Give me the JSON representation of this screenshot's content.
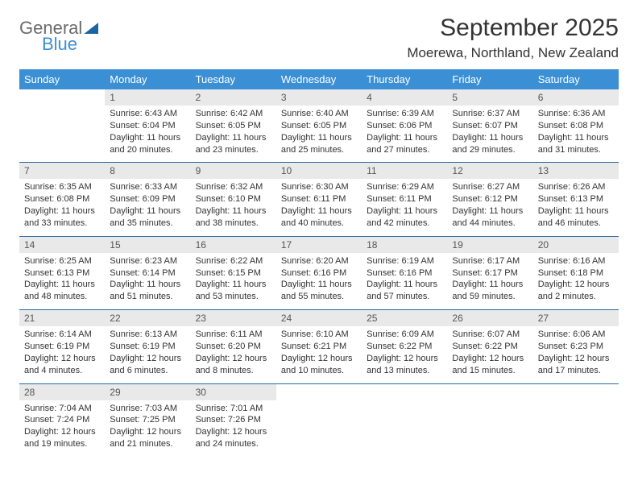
{
  "logo": {
    "line1": "General",
    "line2": "Blue"
  },
  "title": "September 2025",
  "location": "Moerewa, Northland, New Zealand",
  "colors": {
    "header_bg": "#3b8fd4",
    "header_text": "#ffffff",
    "daynum_bg": "#e9e9e9",
    "rule": "#2b6aa0",
    "body_text": "#333333",
    "logo_gray": "#6b6b6b",
    "logo_blue": "#3b8fd4"
  },
  "weekdays": [
    "Sunday",
    "Monday",
    "Tuesday",
    "Wednesday",
    "Thursday",
    "Friday",
    "Saturday"
  ],
  "weeks": [
    {
      "nums": [
        "",
        "1",
        "2",
        "3",
        "4",
        "5",
        "6"
      ],
      "cells": [
        "",
        "Sunrise: 6:43 AM\nSunset: 6:04 PM\nDaylight: 11 hours and 20 minutes.",
        "Sunrise: 6:42 AM\nSunset: 6:05 PM\nDaylight: 11 hours and 23 minutes.",
        "Sunrise: 6:40 AM\nSunset: 6:05 PM\nDaylight: 11 hours and 25 minutes.",
        "Sunrise: 6:39 AM\nSunset: 6:06 PM\nDaylight: 11 hours and 27 minutes.",
        "Sunrise: 6:37 AM\nSunset: 6:07 PM\nDaylight: 11 hours and 29 minutes.",
        "Sunrise: 6:36 AM\nSunset: 6:08 PM\nDaylight: 11 hours and 31 minutes."
      ]
    },
    {
      "nums": [
        "7",
        "8",
        "9",
        "10",
        "11",
        "12",
        "13"
      ],
      "cells": [
        "Sunrise: 6:35 AM\nSunset: 6:08 PM\nDaylight: 11 hours and 33 minutes.",
        "Sunrise: 6:33 AM\nSunset: 6:09 PM\nDaylight: 11 hours and 35 minutes.",
        "Sunrise: 6:32 AM\nSunset: 6:10 PM\nDaylight: 11 hours and 38 minutes.",
        "Sunrise: 6:30 AM\nSunset: 6:11 PM\nDaylight: 11 hours and 40 minutes.",
        "Sunrise: 6:29 AM\nSunset: 6:11 PM\nDaylight: 11 hours and 42 minutes.",
        "Sunrise: 6:27 AM\nSunset: 6:12 PM\nDaylight: 11 hours and 44 minutes.",
        "Sunrise: 6:26 AM\nSunset: 6:13 PM\nDaylight: 11 hours and 46 minutes."
      ]
    },
    {
      "nums": [
        "14",
        "15",
        "16",
        "17",
        "18",
        "19",
        "20"
      ],
      "cells": [
        "Sunrise: 6:25 AM\nSunset: 6:13 PM\nDaylight: 11 hours and 48 minutes.",
        "Sunrise: 6:23 AM\nSunset: 6:14 PM\nDaylight: 11 hours and 51 minutes.",
        "Sunrise: 6:22 AM\nSunset: 6:15 PM\nDaylight: 11 hours and 53 minutes.",
        "Sunrise: 6:20 AM\nSunset: 6:16 PM\nDaylight: 11 hours and 55 minutes.",
        "Sunrise: 6:19 AM\nSunset: 6:16 PM\nDaylight: 11 hours and 57 minutes.",
        "Sunrise: 6:17 AM\nSunset: 6:17 PM\nDaylight: 11 hours and 59 minutes.",
        "Sunrise: 6:16 AM\nSunset: 6:18 PM\nDaylight: 12 hours and 2 minutes."
      ]
    },
    {
      "nums": [
        "21",
        "22",
        "23",
        "24",
        "25",
        "26",
        "27"
      ],
      "cells": [
        "Sunrise: 6:14 AM\nSunset: 6:19 PM\nDaylight: 12 hours and 4 minutes.",
        "Sunrise: 6:13 AM\nSunset: 6:19 PM\nDaylight: 12 hours and 6 minutes.",
        "Sunrise: 6:11 AM\nSunset: 6:20 PM\nDaylight: 12 hours and 8 minutes.",
        "Sunrise: 6:10 AM\nSunset: 6:21 PM\nDaylight: 12 hours and 10 minutes.",
        "Sunrise: 6:09 AM\nSunset: 6:22 PM\nDaylight: 12 hours and 13 minutes.",
        "Sunrise: 6:07 AM\nSunset: 6:22 PM\nDaylight: 12 hours and 15 minutes.",
        "Sunrise: 6:06 AM\nSunset: 6:23 PM\nDaylight: 12 hours and 17 minutes."
      ]
    },
    {
      "nums": [
        "28",
        "29",
        "30",
        "",
        "",
        "",
        ""
      ],
      "cells": [
        "Sunrise: 7:04 AM\nSunset: 7:24 PM\nDaylight: 12 hours and 19 minutes.",
        "Sunrise: 7:03 AM\nSunset: 7:25 PM\nDaylight: 12 hours and 21 minutes.",
        "Sunrise: 7:01 AM\nSunset: 7:26 PM\nDaylight: 12 hours and 24 minutes.",
        "",
        "",
        "",
        ""
      ]
    }
  ]
}
